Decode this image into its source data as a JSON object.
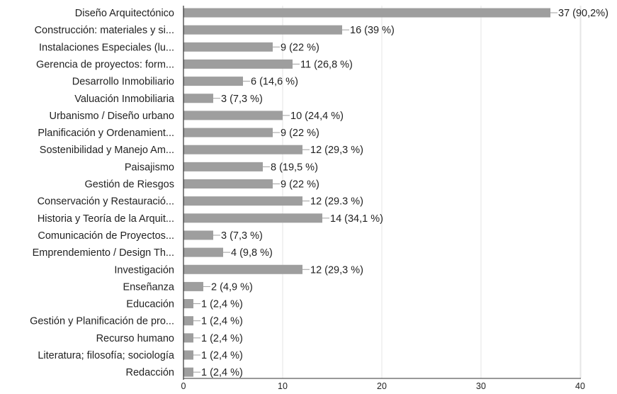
{
  "chart_data": {
    "type": "bar",
    "orientation": "horizontal",
    "categories": [
      "Diseño Arquitectónico",
      "Construcción: materiales y si...",
      "Instalaciones Especiales (lu...",
      "Gerencia de proyectos: form...",
      "Desarrollo Inmobiliario",
      "Valuación Inmobiliaria",
      "Urbanismo / Diseño urbano",
      "Planificación y Ordenamient...",
      "Sostenibilidad y Manejo Am...",
      "Paisajismo",
      "Gestión de Riesgos",
      "Conservación y Restauració...",
      "Historia y Teoría de la Arquit...",
      "Comunicación de Proyectos...",
      "Emprendemiento / Design Th...",
      "Investigación",
      "Enseñanza",
      "Educación",
      "Gestión y Planificación de pro...",
      "Recurso humano",
      "Literatura; filosofía; sociología",
      "Redacción"
    ],
    "values": [
      37,
      16,
      9,
      11,
      6,
      3,
      10,
      9,
      12,
      8,
      9,
      12,
      14,
      3,
      4,
      12,
      2,
      1,
      1,
      1,
      1,
      1
    ],
    "data_labels": [
      "37 (90,2%)",
      "16 (39 %)",
      "9 (22 %)",
      "11 (26,8 %)",
      "6 (14,6 %)",
      "3 (7,3 %)",
      "10 (24,4 %)",
      "9 (22 %)",
      "12 (29,3 %)",
      "8 (19,5 %)",
      "9 (22 %)",
      "12 (29.3 %)",
      "14 (34,1 %)",
      "3 (7,3 %)",
      "4 (9,8 %)",
      "12 (29,3 %)",
      "2 (4,9 %)",
      "1 (2,4 %)",
      "1 (2,4 %)",
      "1 (2,4 %)",
      "1 (2,4 %)",
      "1 (2,4 %)"
    ],
    "xlim": [
      0,
      40
    ],
    "xticks": [
      0,
      10,
      20,
      30,
      40
    ],
    "grid": true,
    "bar_color": "#9e9e9e",
    "grid_color": "#e6e6e6",
    "axis_color": "#333333",
    "text_color": "#222222"
  }
}
